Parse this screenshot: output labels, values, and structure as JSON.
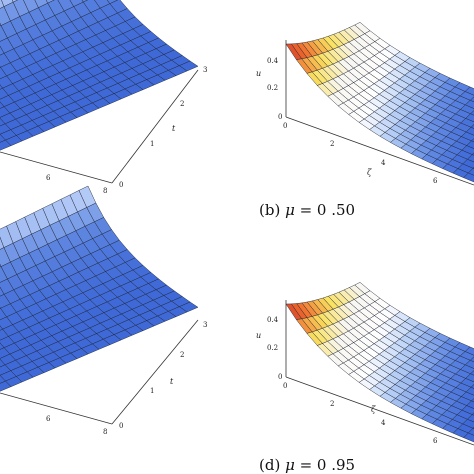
{
  "chart_data": [
    {
      "type": "surface",
      "panel": "a",
      "x_axis": {
        "ticks": [
          "6",
          "8"
        ]
      },
      "y_axis": {
        "label": "t",
        "ticks": [
          "0",
          "1",
          "2",
          "3"
        ]
      },
      "xlim": [
        0,
        8
      ],
      "ylim": [
        0,
        3
      ],
      "colormap": "blue-white"
    },
    {
      "type": "surface",
      "panel": "b",
      "caption": {
        "prefix": "(b) ",
        "symbol": "μ",
        "value": " = 0 .50"
      },
      "x_axis": {
        "label": "ζ",
        "ticks": [
          "0",
          "2",
          "4",
          "6"
        ]
      },
      "z_axis": {
        "label": "u",
        "ticks": [
          "0",
          "0.2",
          "0.4"
        ]
      },
      "xlim": [
        0,
        8
      ],
      "zlim": [
        0,
        0.45
      ],
      "colormap": "yellow-red-white-blue"
    },
    {
      "type": "surface",
      "panel": "c",
      "x_axis": {
        "ticks": [
          "6",
          "8"
        ]
      },
      "y_axis": {
        "label": "t",
        "ticks": [
          "0",
          "1",
          "2",
          "3"
        ]
      },
      "xlim": [
        0,
        8
      ],
      "ylim": [
        0,
        3
      ],
      "colormap": "blue-white"
    },
    {
      "type": "surface",
      "panel": "d",
      "caption": {
        "prefix": "(d) ",
        "symbol": "μ",
        "value": " = 0 .95"
      },
      "x_axis": {
        "label": "ζ",
        "ticks": [
          "0",
          "2",
          "4",
          "6"
        ]
      },
      "z_axis": {
        "label": "u",
        "ticks": [
          "0",
          "0.2",
          "0.4"
        ]
      },
      "xlim": [
        0,
        8
      ],
      "zlim": [
        0,
        0.45
      ],
      "colormap": "yellow-red-white-blue"
    }
  ]
}
